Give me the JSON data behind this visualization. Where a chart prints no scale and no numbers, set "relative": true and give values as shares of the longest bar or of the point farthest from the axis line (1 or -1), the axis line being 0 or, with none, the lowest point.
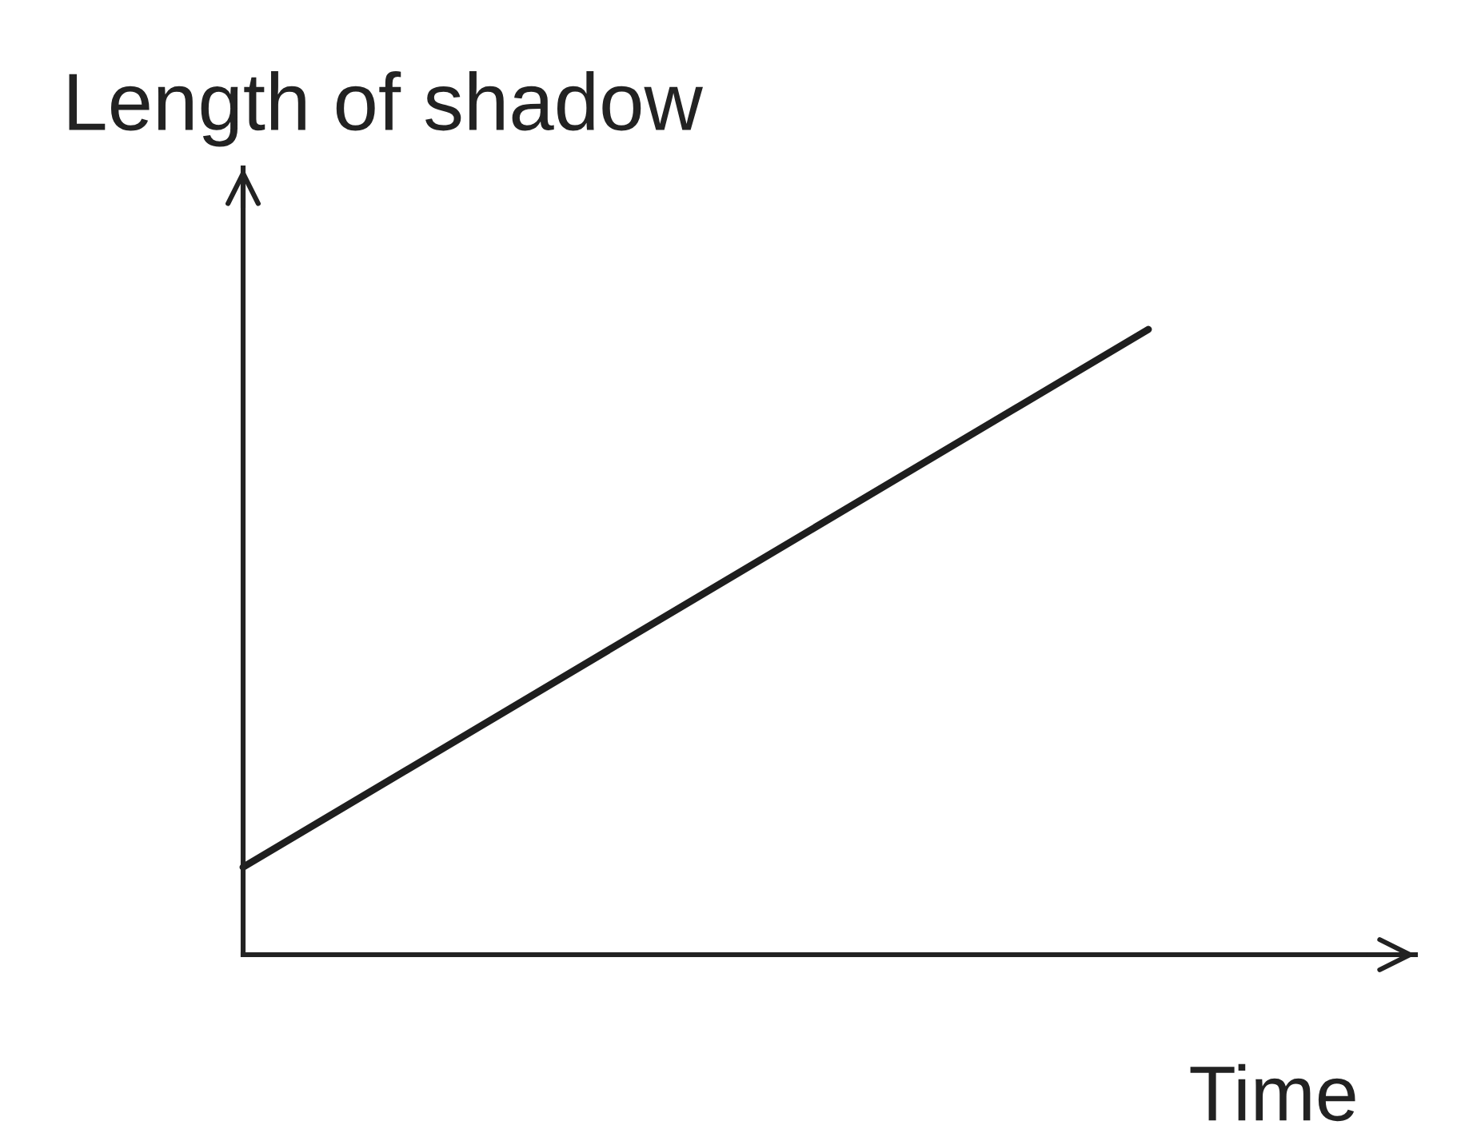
{
  "chart_data": {
    "type": "line",
    "xlabel": "Time",
    "ylabel": "Length of shadow",
    "categories": [
      null,
      null
    ],
    "relative": true,
    "values": [
      0.14,
      1
    ],
    "color": "#1e1e1e",
    "grid": false
  }
}
